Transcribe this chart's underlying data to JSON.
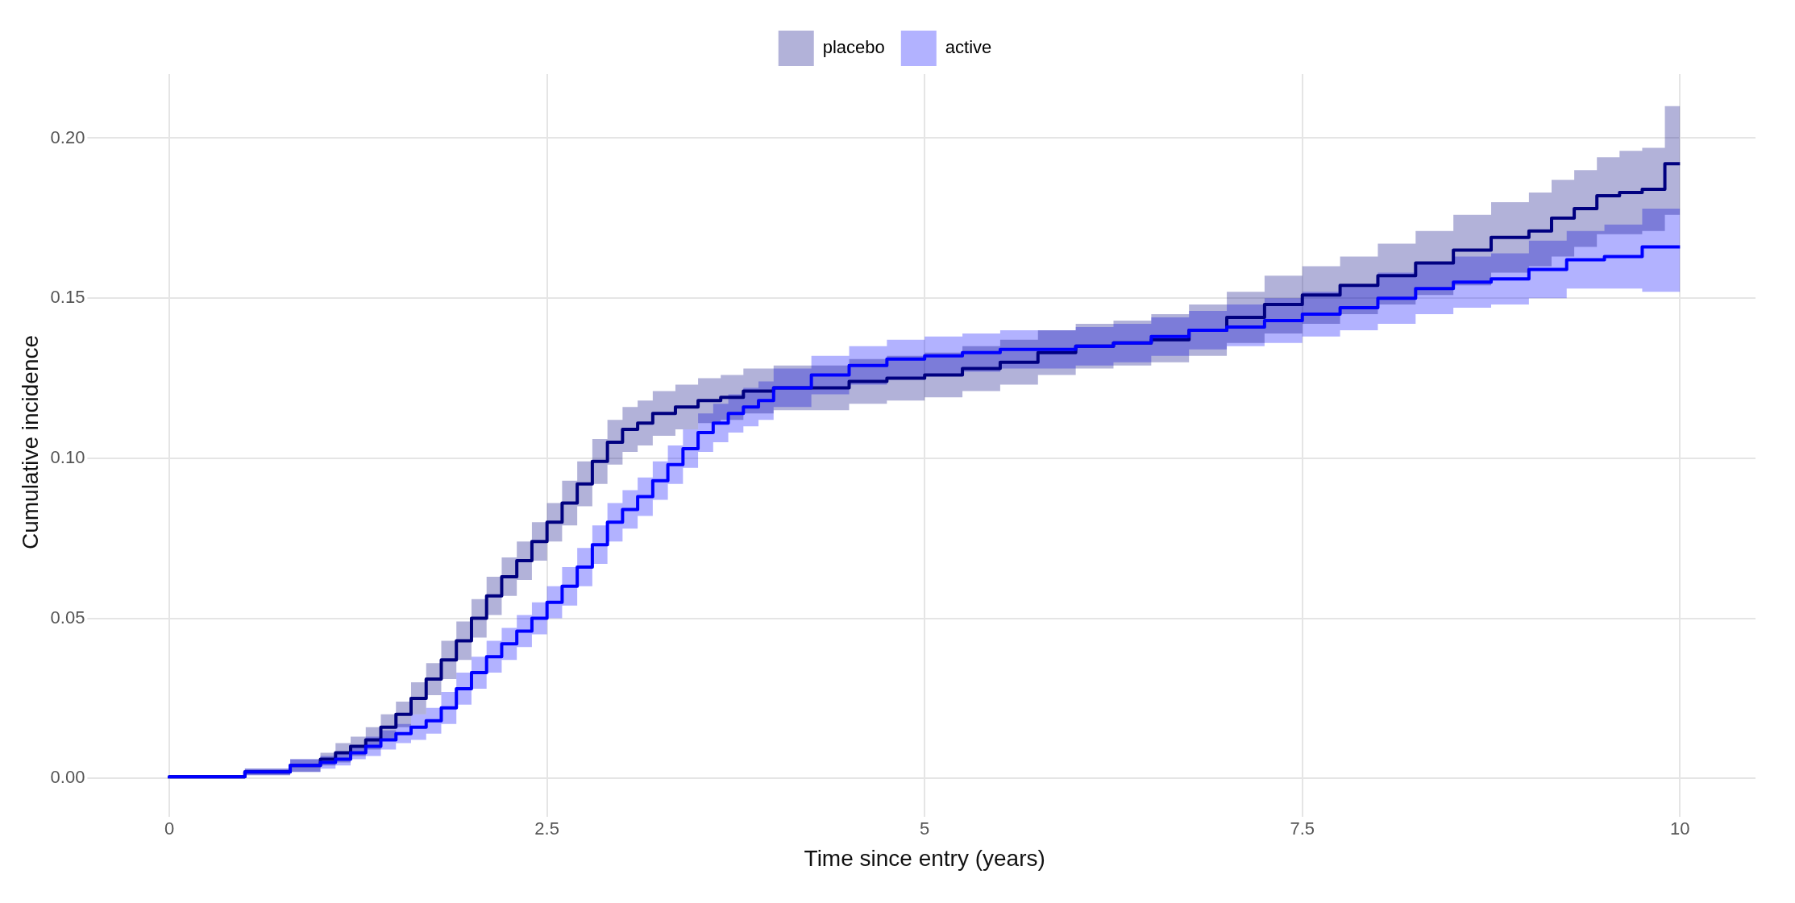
{
  "chart_data": {
    "type": "step",
    "xlabel": "Time since entry (years)",
    "ylabel": "Cumulative incidence",
    "legend": "top",
    "grid": true,
    "xlim": [
      -0.5,
      10.5
    ],
    "xticks": [
      0,
      2.5,
      5,
      7.5,
      10
    ],
    "ylim": [
      -0.01,
      0.22
    ],
    "yticks": [
      {
        "value": 0,
        "label": "0.00"
      },
      {
        "value": 0.05,
        "label": "0.05"
      },
      {
        "value": 0.1,
        "label": "0.10"
      },
      {
        "value": 0.15,
        "label": "0.15"
      },
      {
        "value": 0.2,
        "label": "0.20"
      }
    ],
    "series": [
      {
        "name": "placebo",
        "color": "#000080",
        "x": [
          0,
          0.5,
          0.8,
          1.0,
          1.1,
          1.2,
          1.3,
          1.4,
          1.5,
          1.6,
          1.7,
          1.8,
          1.9,
          2.0,
          2.1,
          2.2,
          2.3,
          2.4,
          2.5,
          2.6,
          2.7,
          2.8,
          2.9,
          3.0,
          3.1,
          3.2,
          3.35,
          3.5,
          3.65,
          3.8,
          4.0,
          4.25,
          4.5,
          4.75,
          5.0,
          5.25,
          5.5,
          5.75,
          6.0,
          6.25,
          6.5,
          6.75,
          7.0,
          7.25,
          7.5,
          7.75,
          8.0,
          8.25,
          8.5,
          8.75,
          9.0,
          9.15,
          9.3,
          9.45,
          9.6,
          9.75,
          9.9,
          9.95,
          10
        ],
        "values": [
          0,
          0.0005,
          0.002,
          0.004,
          0.006,
          0.008,
          0.01,
          0.012,
          0.016,
          0.02,
          0.025,
          0.031,
          0.037,
          0.043,
          0.05,
          0.057,
          0.063,
          0.068,
          0.074,
          0.08,
          0.086,
          0.092,
          0.099,
          0.105,
          0.109,
          0.111,
          0.114,
          0.116,
          0.118,
          0.119,
          0.121,
          0.122,
          0.122,
          0.124,
          0.125,
          0.126,
          0.128,
          0.13,
          0.133,
          0.135,
          0.136,
          0.137,
          0.14,
          0.144,
          0.148,
          0.151,
          0.154,
          0.157,
          0.161,
          0.165,
          0.169,
          0.171,
          0.175,
          0.178,
          0.182,
          0.183,
          0.184,
          0.192,
          0.192
        ],
        "lower": [
          0,
          0,
          0.001,
          0.002,
          0.004,
          0.005,
          0.007,
          0.009,
          0.012,
          0.016,
          0.02,
          0.026,
          0.031,
          0.037,
          0.044,
          0.051,
          0.057,
          0.062,
          0.068,
          0.074,
          0.079,
          0.085,
          0.092,
          0.098,
          0.102,
          0.104,
          0.107,
          0.109,
          0.111,
          0.112,
          0.114,
          0.115,
          0.115,
          0.117,
          0.118,
          0.119,
          0.121,
          0.123,
          0.126,
          0.128,
          0.129,
          0.13,
          0.132,
          0.136,
          0.139,
          0.142,
          0.145,
          0.148,
          0.151,
          0.154,
          0.158,
          0.16,
          0.163,
          0.166,
          0.17,
          0.17,
          0.171,
          0.176,
          0.176
        ],
        "upper": [
          0,
          0.001,
          0.003,
          0.006,
          0.008,
          0.011,
          0.013,
          0.016,
          0.02,
          0.024,
          0.03,
          0.036,
          0.043,
          0.049,
          0.056,
          0.063,
          0.069,
          0.074,
          0.08,
          0.086,
          0.093,
          0.099,
          0.106,
          0.112,
          0.116,
          0.118,
          0.121,
          0.123,
          0.125,
          0.126,
          0.128,
          0.129,
          0.129,
          0.131,
          0.132,
          0.133,
          0.135,
          0.137,
          0.14,
          0.142,
          0.143,
          0.145,
          0.148,
          0.152,
          0.157,
          0.16,
          0.163,
          0.167,
          0.171,
          0.176,
          0.18,
          0.183,
          0.187,
          0.19,
          0.194,
          0.196,
          0.197,
          0.21,
          0.21
        ]
      },
      {
        "name": "active",
        "color": "#0000ff",
        "x": [
          0,
          0.5,
          0.8,
          1.0,
          1.1,
          1.2,
          1.3,
          1.4,
          1.5,
          1.6,
          1.7,
          1.8,
          1.9,
          2.0,
          2.1,
          2.2,
          2.3,
          2.4,
          2.5,
          2.6,
          2.7,
          2.8,
          2.9,
          3.0,
          3.1,
          3.2,
          3.3,
          3.4,
          3.5,
          3.6,
          3.7,
          3.8,
          3.9,
          4.0,
          4.25,
          4.5,
          4.75,
          5.0,
          5.25,
          5.5,
          5.75,
          6.0,
          6.25,
          6.5,
          6.75,
          7.0,
          7.25,
          7.5,
          7.75,
          8.0,
          8.25,
          8.5,
          8.75,
          9.0,
          9.25,
          9.5,
          9.75,
          9.95,
          10
        ],
        "values": [
          0,
          0.0005,
          0.002,
          0.004,
          0.005,
          0.006,
          0.008,
          0.01,
          0.012,
          0.014,
          0.016,
          0.018,
          0.022,
          0.028,
          0.033,
          0.038,
          0.042,
          0.046,
          0.05,
          0.055,
          0.06,
          0.066,
          0.073,
          0.08,
          0.084,
          0.088,
          0.093,
          0.098,
          0.103,
          0.108,
          0.111,
          0.114,
          0.116,
          0.118,
          0.122,
          0.126,
          0.129,
          0.131,
          0.132,
          0.133,
          0.134,
          0.134,
          0.135,
          0.136,
          0.138,
          0.14,
          0.141,
          0.143,
          0.145,
          0.147,
          0.15,
          0.153,
          0.155,
          0.156,
          0.159,
          0.162,
          0.163,
          0.166,
          0.166
        ],
        "lower": [
          0,
          0,
          0.001,
          0.002,
          0.003,
          0.004,
          0.006,
          0.007,
          0.009,
          0.011,
          0.012,
          0.014,
          0.017,
          0.023,
          0.028,
          0.033,
          0.037,
          0.041,
          0.045,
          0.05,
          0.054,
          0.06,
          0.067,
          0.074,
          0.078,
          0.082,
          0.087,
          0.092,
          0.097,
          0.102,
          0.105,
          0.108,
          0.11,
          0.112,
          0.116,
          0.12,
          0.123,
          0.125,
          0.126,
          0.127,
          0.128,
          0.128,
          0.129,
          0.13,
          0.132,
          0.134,
          0.135,
          0.136,
          0.138,
          0.14,
          0.142,
          0.145,
          0.147,
          0.148,
          0.15,
          0.153,
          0.153,
          0.152,
          0.152
        ],
        "upper": [
          0,
          0.001,
          0.003,
          0.006,
          0.007,
          0.008,
          0.01,
          0.013,
          0.015,
          0.017,
          0.02,
          0.022,
          0.027,
          0.033,
          0.038,
          0.043,
          0.047,
          0.051,
          0.055,
          0.06,
          0.066,
          0.072,
          0.079,
          0.086,
          0.09,
          0.094,
          0.099,
          0.104,
          0.109,
          0.114,
          0.117,
          0.12,
          0.122,
          0.124,
          0.128,
          0.132,
          0.135,
          0.137,
          0.138,
          0.139,
          0.14,
          0.14,
          0.141,
          0.142,
          0.144,
          0.146,
          0.148,
          0.15,
          0.152,
          0.154,
          0.158,
          0.161,
          0.163,
          0.164,
          0.168,
          0.171,
          0.173,
          0.178,
          0.178
        ]
      }
    ]
  }
}
